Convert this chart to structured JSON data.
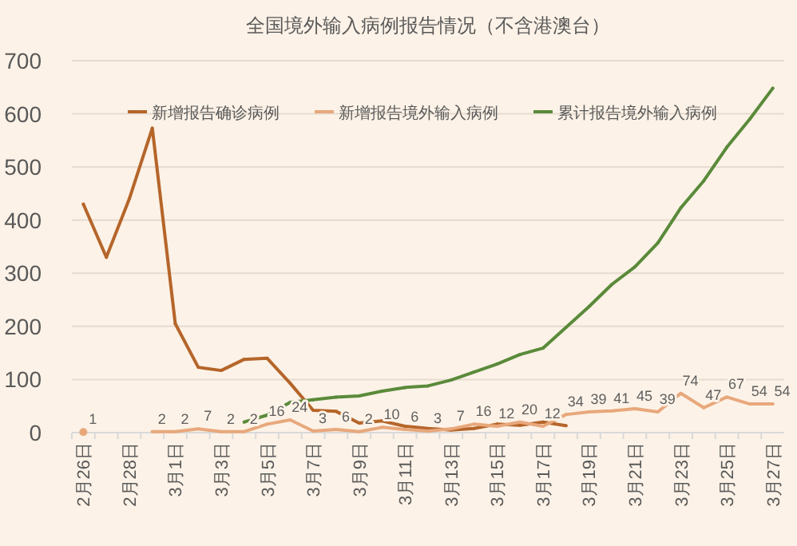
{
  "chart_data": {
    "type": "line",
    "title": "全国境外输入病例报告情况（不含港澳台）",
    "categories": [
      "2月26日",
      null,
      "2月28日",
      null,
      "3月1日",
      null,
      "3月3日",
      null,
      "3月5日",
      null,
      "3月7日",
      null,
      "3月9日",
      null,
      "3月11日",
      null,
      "3月13日",
      null,
      "3月15日",
      null,
      "3月17日",
      null,
      "3月19日",
      null,
      "3月21日",
      null,
      "3月23日",
      null,
      "3月25日",
      null,
      "3月27日"
    ],
    "series": [
      {
        "name": "新增报告确诊病例",
        "color": "#b5652a",
        "values": [
          430,
          330,
          440,
          573,
          205,
          123,
          117,
          138,
          140,
          93,
          42,
          40,
          18,
          22,
          12,
          8,
          5,
          8,
          16,
          14,
          20,
          13,
          null,
          null,
          null,
          null,
          null,
          null,
          null,
          null,
          null
        ]
      },
      {
        "name": "新增报告境外输入病例",
        "color": "#e8a87c",
        "data_labels": true,
        "values": [
          1,
          null,
          null,
          2,
          2,
          7,
          2,
          2,
          16,
          24,
          3,
          6,
          2,
          10,
          6,
          3,
          7,
          16,
          12,
          20,
          12,
          34,
          39,
          41,
          45,
          39,
          74,
          47,
          67,
          54,
          54
        ]
      },
      {
        "name": "累计报告境外输入病例",
        "color": "#5a8a3a",
        "values": [
          null,
          null,
          null,
          null,
          null,
          null,
          null,
          20,
          33,
          57,
          62,
          67,
          69,
          78,
          85,
          88,
          99,
          114,
          129,
          147,
          159,
          198,
          237,
          279,
          312,
          357,
          423,
          474,
          537,
          590,
          648
        ]
      }
    ],
    "ylim": [
      0,
      700
    ],
    "yticks": [
      0,
      100,
      200,
      300,
      400,
      500,
      600,
      700
    ],
    "grid": "y",
    "legend": "top",
    "marker": "none",
    "line_style": "solid"
  }
}
